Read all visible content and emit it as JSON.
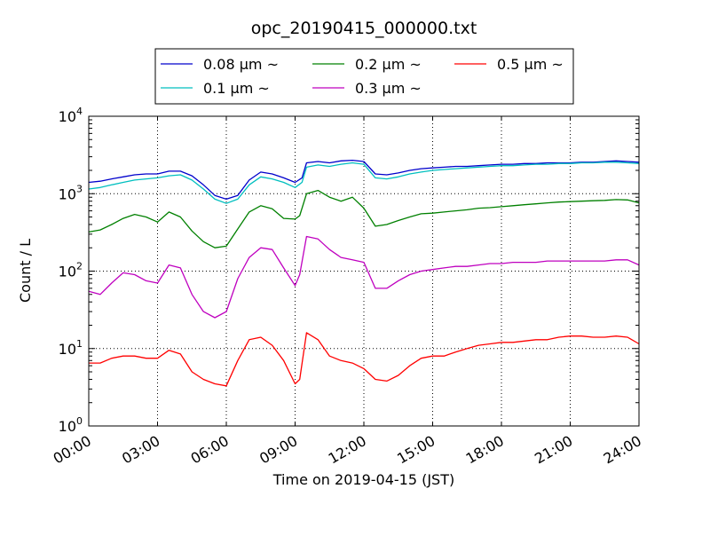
{
  "chart_data": {
    "type": "line",
    "title": "opc_20190415_000000.txt",
    "xlabel": "Time on 2019-04-15 (JST)",
    "ylabel": "Count / L",
    "xlim_hours": [
      0,
      24
    ],
    "ylim": [
      1,
      10000
    ],
    "yscale": "log",
    "grid": true,
    "legend_position": "top-center",
    "x_tick_labels": [
      "00:00",
      "03:00",
      "06:00",
      "09:00",
      "12:00",
      "15:00",
      "18:00",
      "21:00",
      "24:00"
    ],
    "x_tick_values_hours": [
      0,
      3,
      6,
      9,
      12,
      15,
      18,
      21,
      24
    ],
    "y_tick_values": [
      1,
      10,
      100,
      1000,
      10000
    ],
    "y_tick_labels": [
      {
        "base": "10",
        "exp": "0"
      },
      {
        "base": "10",
        "exp": "1"
      },
      {
        "base": "10",
        "exp": "2"
      },
      {
        "base": "10",
        "exp": "3"
      },
      {
        "base": "10",
        "exp": "4"
      }
    ],
    "series": [
      {
        "name": "0.08 μm ~",
        "legend_label": "0.08 μm ~",
        "color": "#0000cc",
        "x": [
          0,
          0.5,
          1,
          1.5,
          2,
          2.5,
          3,
          3.5,
          4,
          4.5,
          5,
          5.5,
          6,
          6.5,
          7,
          7.5,
          8,
          8.5,
          9,
          9.3,
          9.5,
          10,
          10.5,
          11,
          11.5,
          12,
          12.5,
          13,
          13.5,
          14,
          14.5,
          15,
          15.5,
          16,
          16.5,
          17,
          17.5,
          18,
          18.5,
          19,
          19.5,
          20,
          20.5,
          21,
          21.5,
          22,
          22.5,
          23,
          23.5,
          24
        ],
        "y": [
          1400,
          1450,
          1550,
          1650,
          1750,
          1800,
          1800,
          1950,
          1950,
          1700,
          1300,
          950,
          850,
          950,
          1500,
          1900,
          1800,
          1600,
          1400,
          1600,
          2500,
          2600,
          2500,
          2650,
          2700,
          2600,
          1800,
          1750,
          1850,
          2000,
          2100,
          2150,
          2200,
          2250,
          2250,
          2300,
          2350,
          2400,
          2400,
          2450,
          2450,
          2500,
          2500,
          2500,
          2550,
          2550,
          2600,
          2650,
          2600,
          2550
        ]
      },
      {
        "name": "0.1 μm ~",
        "legend_label": "0.1 μm ~",
        "color": "#00bfbf",
        "x": [
          0,
          0.5,
          1,
          1.5,
          2,
          2.5,
          3,
          3.5,
          4,
          4.5,
          5,
          5.5,
          6,
          6.5,
          7,
          7.5,
          8,
          8.5,
          9,
          9.3,
          9.5,
          10,
          10.5,
          11,
          11.5,
          12,
          12.5,
          13,
          13.5,
          14,
          14.5,
          15,
          15.5,
          16,
          16.5,
          17,
          17.5,
          18,
          18.5,
          19,
          19.5,
          20,
          20.5,
          21,
          21.5,
          22,
          22.5,
          23,
          23.5,
          24
        ],
        "y": [
          1150,
          1200,
          1300,
          1400,
          1500,
          1550,
          1600,
          1700,
          1750,
          1500,
          1150,
          850,
          750,
          850,
          1300,
          1650,
          1550,
          1400,
          1200,
          1400,
          2200,
          2350,
          2250,
          2400,
          2500,
          2400,
          1600,
          1550,
          1650,
          1800,
          1900,
          2000,
          2050,
          2100,
          2150,
          2200,
          2250,
          2300,
          2300,
          2350,
          2400,
          2400,
          2450,
          2450,
          2500,
          2500,
          2550,
          2550,
          2500,
          2450
        ]
      },
      {
        "name": "0.2 μm ~",
        "legend_label": "0.2 μm ~",
        "color": "#008000",
        "x": [
          0,
          0.5,
          1,
          1.5,
          2,
          2.5,
          3,
          3.5,
          4,
          4.5,
          5,
          5.5,
          6,
          6.5,
          7,
          7.5,
          8,
          8.5,
          9,
          9.2,
          9.5,
          10,
          10.5,
          11,
          11.5,
          12,
          12.5,
          13,
          13.5,
          14,
          14.5,
          15,
          15.5,
          16,
          16.5,
          17,
          17.5,
          18,
          18.5,
          19,
          19.5,
          20,
          20.5,
          21,
          21.5,
          22,
          22.5,
          23,
          23.5,
          24
        ],
        "y": [
          320,
          340,
          400,
          480,
          540,
          500,
          430,
          580,
          500,
          330,
          240,
          200,
          210,
          350,
          580,
          700,
          640,
          480,
          470,
          520,
          1000,
          1100,
          900,
          800,
          900,
          650,
          380,
          400,
          450,
          500,
          550,
          560,
          580,
          600,
          620,
          650,
          660,
          680,
          700,
          720,
          740,
          760,
          780,
          790,
          800,
          810,
          820,
          840,
          830,
          760
        ]
      },
      {
        "name": "0.3 μm ~",
        "legend_label": "0.3 μm ~",
        "color": "#bf00bf",
        "x": [
          0,
          0.5,
          1,
          1.5,
          2,
          2.5,
          3,
          3.5,
          4,
          4.5,
          5,
          5.5,
          6,
          6.5,
          7,
          7.5,
          8,
          8.5,
          9,
          9.2,
          9.5,
          10,
          10.5,
          11,
          11.5,
          12,
          12.5,
          13,
          13.5,
          14,
          14.5,
          15,
          15.5,
          16,
          16.5,
          17,
          17.5,
          18,
          18.5,
          19,
          19.5,
          20,
          20.5,
          21,
          21.5,
          22,
          22.5,
          23,
          23.5,
          24
        ],
        "y": [
          55,
          50,
          70,
          95,
          90,
          75,
          70,
          120,
          110,
          50,
          30,
          25,
          30,
          80,
          150,
          200,
          190,
          110,
          65,
          90,
          280,
          260,
          190,
          150,
          140,
          130,
          60,
          60,
          75,
          90,
          100,
          105,
          110,
          115,
          115,
          120,
          125,
          125,
          130,
          130,
          130,
          135,
          135,
          135,
          135,
          135,
          135,
          140,
          140,
          120
        ]
      },
      {
        "name": "0.5 μm ~",
        "legend_label": "0.5 μm ~",
        "color": "#ff0000",
        "x": [
          0,
          0.5,
          1,
          1.5,
          2,
          2.5,
          3,
          3.5,
          4,
          4.5,
          5,
          5.5,
          6,
          6.5,
          7,
          7.5,
          8,
          8.5,
          9,
          9.2,
          9.5,
          10,
          10.5,
          11,
          11.5,
          12,
          12.5,
          13,
          13.5,
          14,
          14.5,
          15,
          15.5,
          16,
          16.5,
          17,
          17.5,
          18,
          18.5,
          19,
          19.5,
          20,
          20.5,
          21,
          21.5,
          22,
          22.5,
          23,
          23.5,
          24
        ],
        "y": [
          6.5,
          6.5,
          7.5,
          8,
          8,
          7.5,
          7.5,
          9.5,
          8.5,
          5,
          4,
          3.5,
          3.3,
          7,
          13,
          14,
          11,
          7,
          3.5,
          4,
          16,
          13,
          8,
          7,
          6.5,
          5.5,
          4,
          3.8,
          4.5,
          6,
          7.5,
          8,
          8,
          9,
          10,
          11,
          11.5,
          12,
          12,
          12.5,
          13,
          13,
          14,
          14.5,
          14.5,
          14,
          14,
          14.5,
          14,
          11.5
        ]
      }
    ]
  }
}
